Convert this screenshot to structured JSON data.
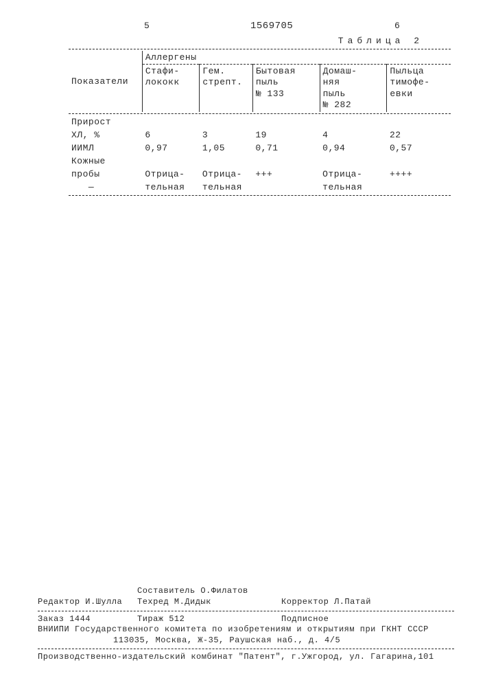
{
  "doc_id": "1569705",
  "page_left_num": "5",
  "page_right_num": "6",
  "table_label": "Таблица 2",
  "row_label_header": "Показатели",
  "group_header": "Аллергены",
  "columns": [
    "Стафи-\nлококк",
    "Гем.\nстрепт.",
    "Бытовая\nпыль\n№ 133",
    "Домаш-\nняя\nпыль\n№ 282",
    "Пыльца\nтимофе-\nевки"
  ],
  "rows": [
    {
      "label": "Прирост",
      "cells": [
        "",
        "",
        "",
        "",
        ""
      ]
    },
    {
      "label": "ХЛ, %",
      "cells": [
        "6",
        "3",
        "19",
        "4",
        "22"
      ]
    },
    {
      "label": "ИИМЛ",
      "cells": [
        "0,97",
        "1,05",
        "0,71",
        "0,94",
        "0,57"
      ]
    },
    {
      "label": "Кожные",
      "cells": [
        "",
        "",
        "",
        "",
        ""
      ]
    },
    {
      "label": "пробы",
      "cells": [
        "Отрица-",
        "Отрица-",
        "+++",
        "Отрица-",
        "++++"
      ]
    },
    {
      "label": "   —",
      "cells": [
        "тельная",
        "тельная",
        "",
        "тельная",
        ""
      ]
    }
  ],
  "footer": {
    "sostavitel": "Составитель О.Филатов",
    "redaktor": "Редактор И.Шулла",
    "tehred": "Техред М.Дидык",
    "korrektor": "Корректор Л.Патай",
    "zakaz": "Заказ 1444",
    "tirazh": "Тираж 512",
    "podpisnoe": "Подписное",
    "org1": "ВНИИПИ Государственного комитета по изобретениям и открытиям при ГКНТ СССР",
    "org2": "113035, Москва, Ж-35, Раушская наб., д. 4/5",
    "press": "Производственно-издательский комбинат \"Патент\", г.Ужгород, ул. Гагарина,101"
  }
}
